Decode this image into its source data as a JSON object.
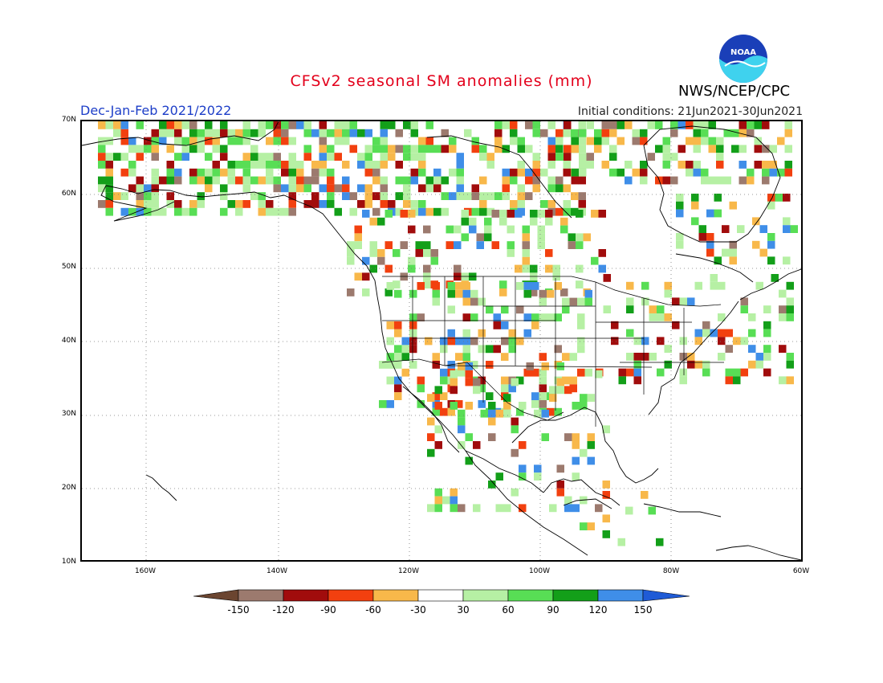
{
  "header": {
    "title": "CFSv2 seasonal SM anomalies (mm)",
    "period": "Dec-Jan-Feb 2021/2022",
    "initial_conditions": "Initial conditions: 21Jun2021-30Jun2021",
    "agency": "NWS/NCEP/CPC",
    "logo_text": "NOAA"
  },
  "map": {
    "lat_labels": [
      "70N",
      "60N",
      "50N",
      "40N",
      "30N",
      "20N",
      "10N"
    ],
    "lon_labels": [
      "160W",
      "140W",
      "120W",
      "100W",
      "80W",
      "60W"
    ]
  },
  "legend": {
    "labels": [
      "-150",
      "-120",
      "-90",
      "-60",
      "-30",
      "30",
      "60",
      "90",
      "120",
      "150"
    ],
    "colors": {
      "lt_minus150": "#6b4530",
      "minus150_to_minus120": "#9c7a6e",
      "minus120_to_minus90": "#a10c0c",
      "minus90_to_minus60": "#f2400f",
      "minus60_to_minus30": "#f8b84a",
      "minus30_to_30": "#ffffff",
      "30_to_60": "#b6f0a4",
      "60_to_90": "#58de55",
      "90_to_120": "#139f19",
      "120_to_150": "#3f8ee8",
      "gt_150": "#1f5bd6"
    }
  }
}
